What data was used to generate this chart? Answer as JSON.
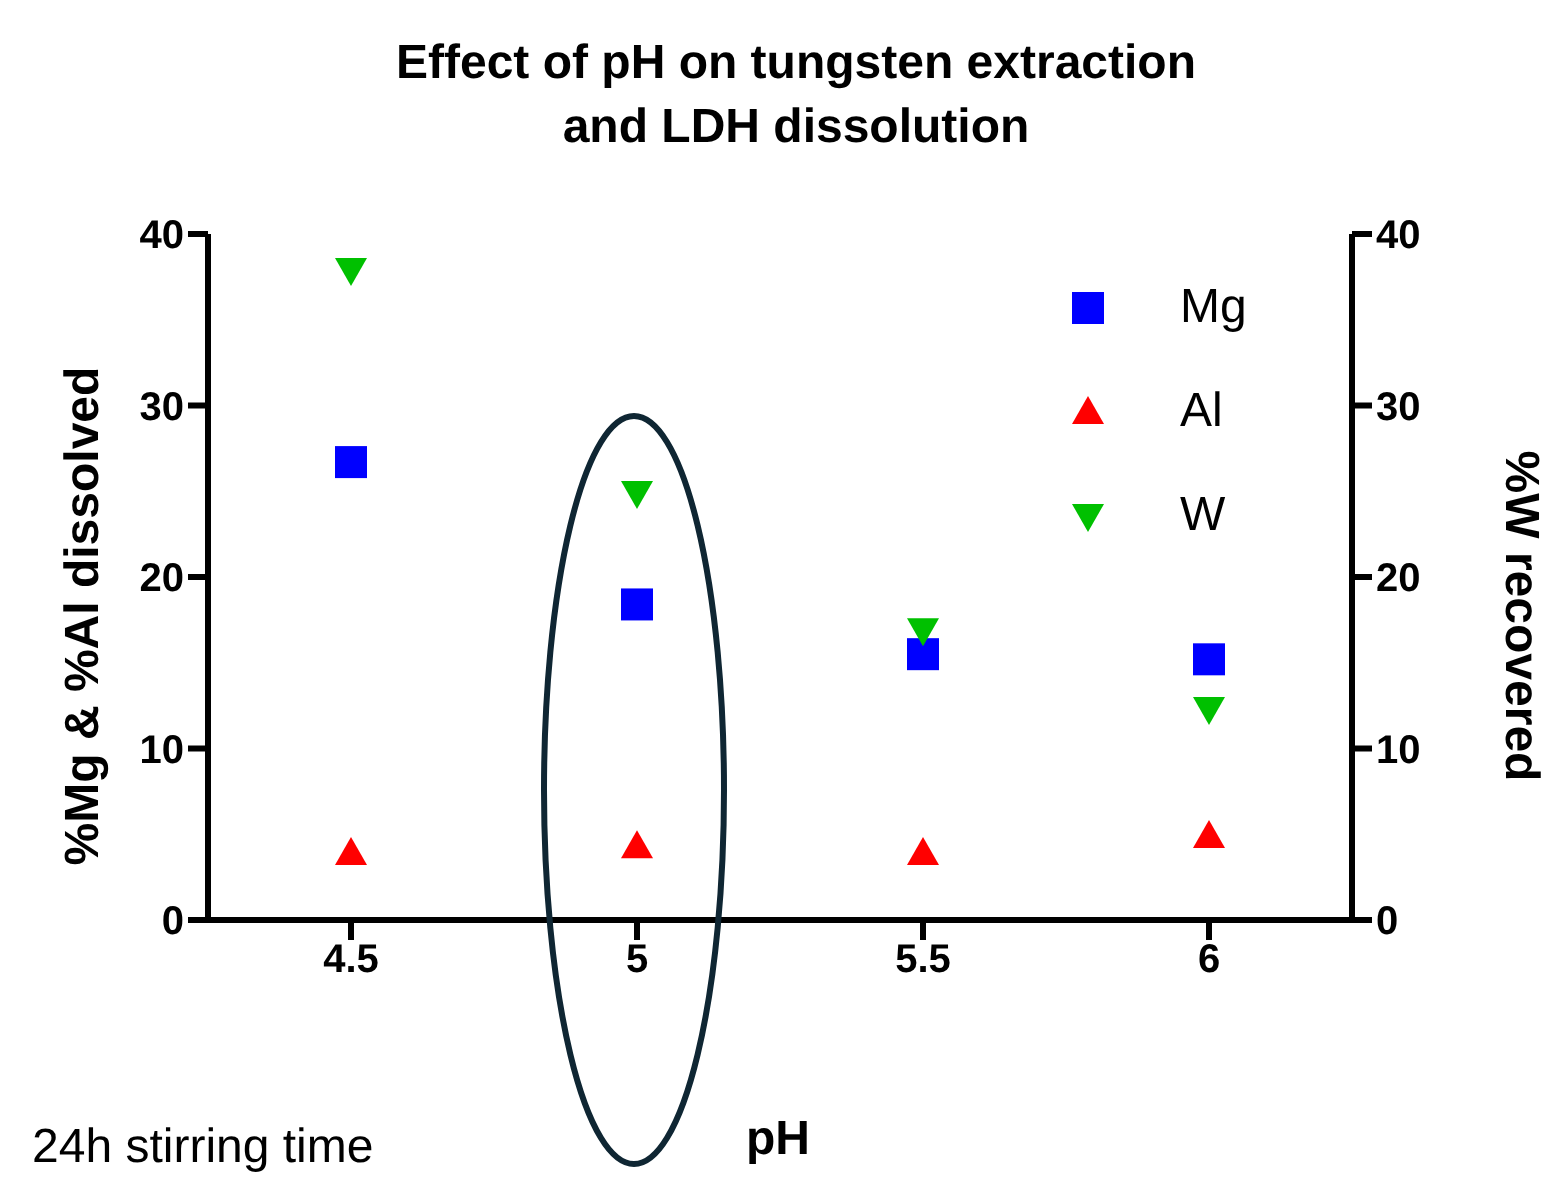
{
  "chart_data": {
    "type": "scatter",
    "title": "Effect of pH on tungsten extraction\nand LDH dissolution",
    "xlabel": "pH",
    "ylabel": "%Mg & %Al dissolved",
    "y2label": "%W recovered",
    "annotations": [
      "24h stirring time"
    ],
    "x": [
      4.5,
      5,
      5.5,
      6
    ],
    "xlim": [
      4.25,
      6.25
    ],
    "xticks": [
      4.5,
      5,
      5.5,
      6
    ],
    "ylim": [
      0,
      40
    ],
    "yticks": [
      0,
      10,
      20,
      30,
      40
    ],
    "y2lim": [
      0,
      40
    ],
    "y2ticks": [
      0,
      10,
      20,
      30,
      40
    ],
    "legend": "top right",
    "series": [
      {
        "name": "Mg",
        "color": "#0000ff",
        "marker": "square",
        "values": [
          26.7,
          18.4,
          15.5,
          15.2
        ]
      },
      {
        "name": "Al",
        "color": "#ff0000",
        "marker": "triangle",
        "values": [
          3.9,
          4.3,
          3.9,
          4.9
        ]
      },
      {
        "name": "W",
        "color": "#00c000",
        "marker": "triangle_down",
        "axis": "y2",
        "values": [
          37.9,
          24.9,
          16.9,
          12.3
        ]
      }
    ]
  }
}
